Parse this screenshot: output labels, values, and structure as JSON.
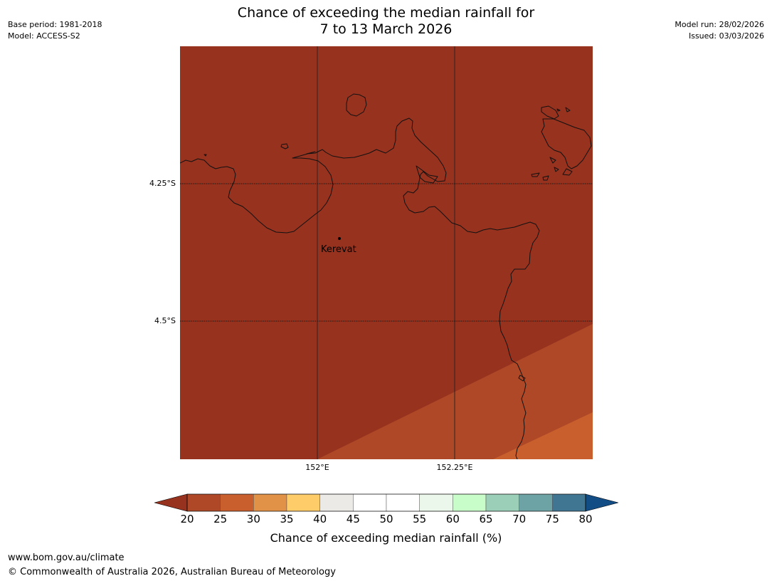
{
  "header": {
    "base_period": "Base period: 1981-2018",
    "model": "Model: ACCESS-S2",
    "model_run": "Model run: 28/02/2026",
    "issued": "Issued: 03/03/2026",
    "title_line1": "Chance of exceeding the median rainfall for",
    "title_line2": "7 to 13 March 2026"
  },
  "map": {
    "latitude_labels": [
      "4.25°S",
      "4.5°S"
    ],
    "longitude_labels": [
      "152°E",
      "152.25°E"
    ],
    "places": [
      {
        "name": "Kerevat"
      }
    ],
    "category_colors": {
      "below_20": "#97321F",
      "20_25": "#AE4826",
      "25_30": "#CA5F2E"
    }
  },
  "colorbar": {
    "label": "Chance of exceeding median rainfall (%)",
    "ticks": [
      "20",
      "25",
      "30",
      "35",
      "40",
      "45",
      "50",
      "55",
      "60",
      "65",
      "70",
      "75",
      "80"
    ],
    "colors": [
      "#AE4826",
      "#CA5F2E",
      "#E19246",
      "#FECC69",
      "#ECEAE7",
      "#FFFFFF",
      "#FFFFFF",
      "#EAF7EA",
      "#C8FCC9",
      "#9BCFB8",
      "#6EA3A6",
      "#417692"
    ],
    "under_color": "#97321F",
    "over_color": "#134D86"
  },
  "footer": {
    "url": "www.bom.gov.au/climate",
    "copyright": "© Commonwealth of Australia 2026, Australian Bureau of Meteorology"
  }
}
